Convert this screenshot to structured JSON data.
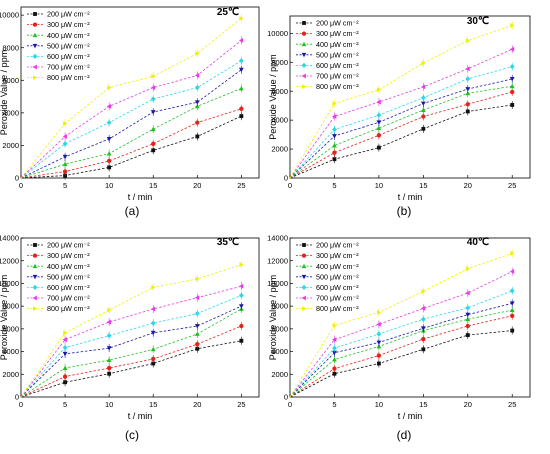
{
  "figure": {
    "legend_labels": [
      "200 μW cm⁻²",
      "300 μW cm⁻²",
      "400 μW cm⁻²",
      "500 μW cm⁻²",
      "600 μW cm⁻²",
      "700 μW cm⁻²",
      "800 μW cm⁻²"
    ]
  },
  "chart_data": [
    {
      "type": "line",
      "panel_label": "(a)",
      "temperature_label": "25℃",
      "xlabel": "t / min",
      "ylabel": "Peroxide Value / ppm",
      "xlim": [
        0,
        27
      ],
      "ylim": [
        0,
        10500
      ],
      "x_ticks": [
        0,
        5,
        10,
        15,
        20,
        25
      ],
      "y_ticks": [
        0,
        2000,
        4000,
        6000,
        8000,
        10000
      ],
      "x": [
        0,
        5,
        10,
        15,
        20,
        25
      ],
      "legend_position": "top-left",
      "series": [
        {
          "name": "200 μW cm⁻²",
          "color": "#111111",
          "marker": "square",
          "values": [
            0,
            150,
            650,
            1700,
            2550,
            3800
          ]
        },
        {
          "name": "300 μW cm⁻²",
          "color": "#e8211c",
          "marker": "circle",
          "values": [
            0,
            400,
            1050,
            2100,
            3400,
            4250
          ]
        },
        {
          "name": "400 μW cm⁻²",
          "color": "#22c022",
          "marker": "triangle-up",
          "values": [
            0,
            850,
            1500,
            3000,
            4400,
            5500
          ]
        },
        {
          "name": "500 μW cm⁻²",
          "color": "#1a1aa8",
          "marker": "triangle-down",
          "values": [
            0,
            1300,
            2400,
            4050,
            4650,
            6650
          ]
        },
        {
          "name": "600 μW cm⁻²",
          "color": "#29d8e8",
          "marker": "diamond",
          "values": [
            0,
            2100,
            3400,
            4850,
            5550,
            7200
          ]
        },
        {
          "name": "700 μW cm⁻²",
          "color": "#e63be6",
          "marker": "triangle-left",
          "values": [
            0,
            2550,
            4400,
            5550,
            6300,
            8450
          ]
        },
        {
          "name": "800 μW cm⁻²",
          "color": "#f0f000",
          "marker": "triangle-right",
          "values": [
            0,
            3350,
            5550,
            6250,
            7650,
            9800
          ]
        }
      ]
    },
    {
      "type": "line",
      "panel_label": "(b)",
      "temperature_label": "30℃",
      "xlabel": "t / min",
      "ylabel": "Peroxide Value / ppm",
      "xlim": [
        0,
        27
      ],
      "ylim": [
        0,
        11200
      ],
      "x_ticks": [
        0,
        5,
        10,
        15,
        20,
        25
      ],
      "y_ticks": [
        0,
        2000,
        4000,
        6000,
        8000,
        10000
      ],
      "x": [
        0,
        5,
        10,
        15,
        20,
        25
      ],
      "legend_position": "top-left",
      "series": [
        {
          "name": "200 μW cm⁻²",
          "color": "#111111",
          "marker": "square",
          "values": [
            0,
            1300,
            2100,
            3400,
            4600,
            5050
          ]
        },
        {
          "name": "300 μW cm⁻²",
          "color": "#e8211c",
          "marker": "circle",
          "values": [
            0,
            1750,
            2950,
            4250,
            5100,
            5950
          ]
        },
        {
          "name": "400 μW cm⁻²",
          "color": "#22c022",
          "marker": "triangle-up",
          "values": [
            0,
            2250,
            3450,
            4700,
            5850,
            6350
          ]
        },
        {
          "name": "500 μW cm⁻²",
          "color": "#1a1aa8",
          "marker": "triangle-down",
          "values": [
            0,
            2900,
            3850,
            5150,
            6150,
            6850
          ]
        },
        {
          "name": "600 μW cm⁻²",
          "color": "#29d8e8",
          "marker": "diamond",
          "values": [
            0,
            3350,
            4350,
            5550,
            6850,
            7700
          ]
        },
        {
          "name": "700 μW cm⁻²",
          "color": "#e63be6",
          "marker": "triangle-left",
          "values": [
            0,
            4250,
            5250,
            6300,
            7550,
            8900
          ]
        },
        {
          "name": "800 μW cm⁻²",
          "color": "#f0f000",
          "marker": "triangle-right",
          "values": [
            0,
            5150,
            6100,
            7950,
            9500,
            10550
          ]
        }
      ]
    },
    {
      "type": "line",
      "panel_label": "(c)",
      "temperature_label": "35℃",
      "xlabel": "t / min",
      "ylabel": "Peroxide Value / ppm",
      "xlim": [
        0,
        27
      ],
      "ylim": [
        0,
        14000
      ],
      "x_ticks": [
        0,
        5,
        10,
        15,
        20,
        25
      ],
      "y_ticks": [
        0,
        2000,
        4000,
        6000,
        8000,
        10000,
        12000,
        14000
      ],
      "x": [
        0,
        5,
        10,
        15,
        20,
        25
      ],
      "legend_position": "top-left",
      "series": [
        {
          "name": "200 μW cm⁻²",
          "color": "#111111",
          "marker": "square",
          "values": [
            0,
            1300,
            2050,
            2950,
            4250,
            4950
          ]
        },
        {
          "name": "300 μW cm⁻²",
          "color": "#e8211c",
          "marker": "circle",
          "values": [
            0,
            1800,
            2550,
            3350,
            4650,
            6250
          ]
        },
        {
          "name": "400 μW cm⁻²",
          "color": "#22c022",
          "marker": "triangle-up",
          "values": [
            0,
            2550,
            3250,
            4200,
            5550,
            7750
          ]
        },
        {
          "name": "500 μW cm⁻²",
          "color": "#1a1aa8",
          "marker": "triangle-down",
          "values": [
            0,
            3800,
            4300,
            5650,
            6250,
            8000
          ]
        },
        {
          "name": "600 μW cm⁻²",
          "color": "#29d8e8",
          "marker": "diamond",
          "values": [
            0,
            4350,
            5400,
            6500,
            7350,
            8950
          ]
        },
        {
          "name": "700 μW cm⁻²",
          "color": "#e63be6",
          "marker": "triangle-left",
          "values": [
            0,
            5050,
            6600,
            7750,
            8750,
            9750
          ]
        },
        {
          "name": "800 μW cm⁻²",
          "color": "#f0f000",
          "marker": "triangle-right",
          "values": [
            0,
            5650,
            7650,
            9650,
            10400,
            11650
          ]
        }
      ]
    },
    {
      "type": "line",
      "panel_label": "(d)",
      "temperature_label": "40℃",
      "xlabel": "t / min",
      "ylabel": "Peroxide Value / ppm",
      "xlim": [
        0,
        27
      ],
      "ylim": [
        0,
        14000
      ],
      "x_ticks": [
        0,
        5,
        10,
        15,
        20,
        25
      ],
      "y_ticks": [
        0,
        2000,
        4000,
        6000,
        8000,
        10000,
        12000,
        14000
      ],
      "x": [
        0,
        5,
        10,
        15,
        20,
        25
      ],
      "legend_position": "top-left",
      "series": [
        {
          "name": "200 μW cm⁻²",
          "color": "#111111",
          "marker": "square",
          "values": [
            0,
            2050,
            2950,
            4200,
            5450,
            5850
          ]
        },
        {
          "name": "300 μW cm⁻²",
          "color": "#e8211c",
          "marker": "circle",
          "values": [
            0,
            2500,
            3650,
            5100,
            6250,
            7150
          ]
        },
        {
          "name": "400 μW cm⁻²",
          "color": "#22c022",
          "marker": "triangle-up",
          "values": [
            0,
            3300,
            4450,
            5850,
            6850,
            7650
          ]
        },
        {
          "name": "500 μW cm⁻²",
          "color": "#1a1aa8",
          "marker": "triangle-down",
          "values": [
            0,
            3900,
            4800,
            6050,
            7250,
            8250
          ]
        },
        {
          "name": "600 μW cm⁻²",
          "color": "#29d8e8",
          "marker": "diamond",
          "values": [
            0,
            4300,
            5550,
            6850,
            7850,
            9350
          ]
        },
        {
          "name": "700 μW cm⁻²",
          "color": "#e63be6",
          "marker": "triangle-left",
          "values": [
            0,
            5050,
            6400,
            7800,
            9150,
            11050
          ]
        },
        {
          "name": "800 μW cm⁻²",
          "color": "#f0f000",
          "marker": "triangle-right",
          "values": [
            0,
            6300,
            7450,
            9300,
            11300,
            12650
          ]
        }
      ]
    }
  ]
}
